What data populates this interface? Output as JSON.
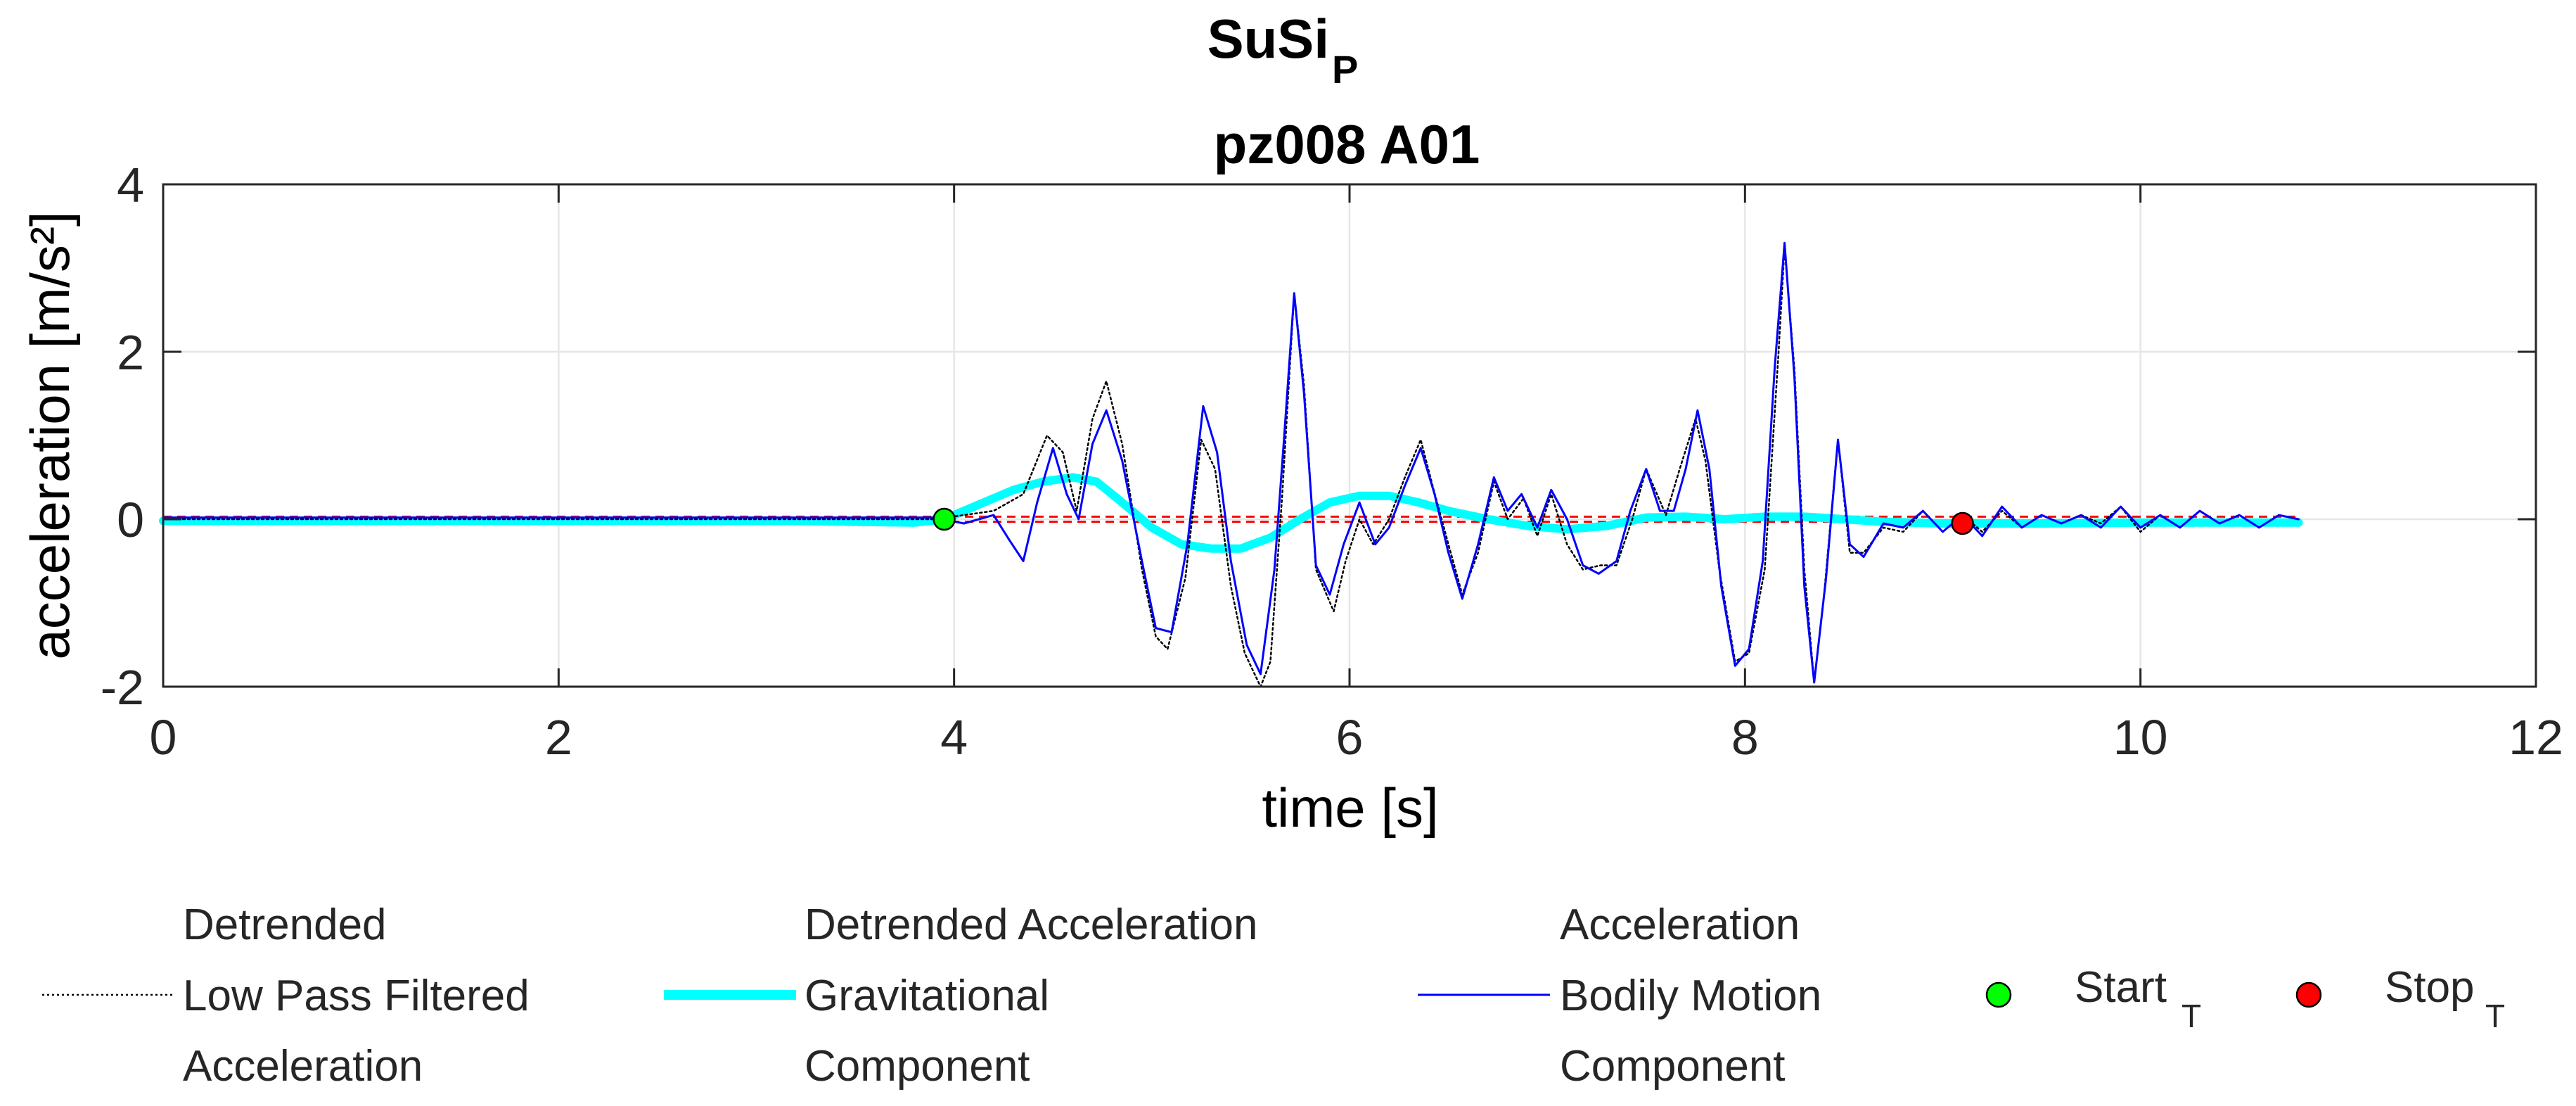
{
  "chart_data": {
    "type": "line",
    "title_main": "SuSi",
    "title_sub": "P",
    "subtitle": "pz008 A01",
    "xlabel": "time [s]",
    "ylabel": "acceleration [m/s²]",
    "xlim": [
      0,
      12
    ],
    "ylim": [
      -2,
      4
    ],
    "xticks": [
      0,
      2,
      4,
      6,
      8,
      10,
      12
    ],
    "yticks": [
      -2,
      0,
      2,
      4
    ],
    "grid": true,
    "legend_position": "bottom",
    "series": [
      {
        "name": "Detrended Low Pass Filtered Acceleration",
        "legend_lines": [
          "Detrended",
          "Low Pass Filtered",
          "Acceleration"
        ],
        "color": "#000000",
        "style": "dotted",
        "points": [
          [
            0,
            0.0
          ],
          [
            3.9,
            0.0
          ],
          [
            4.05,
            0.05
          ],
          [
            4.2,
            0.1
          ],
          [
            4.35,
            0.3
          ],
          [
            4.47,
            1.0
          ],
          [
            4.55,
            0.8
          ],
          [
            4.62,
            0.1
          ],
          [
            4.7,
            1.2
          ],
          [
            4.77,
            1.65
          ],
          [
            4.85,
            0.9
          ],
          [
            4.95,
            -0.6
          ],
          [
            5.02,
            -1.4
          ],
          [
            5.08,
            -1.55
          ],
          [
            5.17,
            -0.7
          ],
          [
            5.25,
            0.95
          ],
          [
            5.32,
            0.6
          ],
          [
            5.4,
            -0.8
          ],
          [
            5.47,
            -1.6
          ],
          [
            5.55,
            -2.0
          ],
          [
            5.6,
            -1.7
          ],
          [
            5.66,
            0.3
          ],
          [
            5.72,
            2.7
          ],
          [
            5.77,
            1.6
          ],
          [
            5.83,
            -0.6
          ],
          [
            5.92,
            -1.1
          ],
          [
            5.98,
            -0.5
          ],
          [
            6.05,
            0.0
          ],
          [
            6.12,
            -0.3
          ],
          [
            6.2,
            0.0
          ],
          [
            6.28,
            0.5
          ],
          [
            6.36,
            0.95
          ],
          [
            6.42,
            0.4
          ],
          [
            6.5,
            -0.3
          ],
          [
            6.57,
            -0.9
          ],
          [
            6.65,
            -0.4
          ],
          [
            6.73,
            0.45
          ],
          [
            6.8,
            0.0
          ],
          [
            6.88,
            0.25
          ],
          [
            6.95,
            -0.2
          ],
          [
            7.02,
            0.3
          ],
          [
            7.1,
            -0.3
          ],
          [
            7.18,
            -0.6
          ],
          [
            7.27,
            -0.55
          ],
          [
            7.35,
            -0.55
          ],
          [
            7.43,
            0.0
          ],
          [
            7.5,
            0.6
          ],
          [
            7.6,
            0.05
          ],
          [
            7.67,
            0.6
          ],
          [
            7.75,
            1.2
          ],
          [
            7.8,
            0.7
          ],
          [
            7.87,
            -0.6
          ],
          [
            7.95,
            -1.7
          ],
          [
            8.02,
            -1.6
          ],
          [
            8.1,
            -0.6
          ],
          [
            8.17,
            2.0
          ],
          [
            8.2,
            3.25
          ],
          [
            8.25,
            1.8
          ],
          [
            8.3,
            -0.6
          ],
          [
            8.35,
            -1.95
          ],
          [
            8.4,
            -0.9
          ],
          [
            8.47,
            0.95
          ],
          [
            8.53,
            -0.4
          ],
          [
            8.6,
            -0.4
          ],
          [
            8.7,
            -0.1
          ],
          [
            8.8,
            -0.15
          ],
          [
            8.9,
            0.1
          ],
          [
            9.0,
            -0.15
          ],
          [
            9.1,
            0.05
          ],
          [
            9.2,
            -0.15
          ],
          [
            9.3,
            0.1
          ],
          [
            9.4,
            -0.1
          ],
          [
            9.5,
            0.05
          ],
          [
            9.6,
            -0.05
          ],
          [
            9.7,
            0.05
          ],
          [
            9.8,
            -0.05
          ],
          [
            9.9,
            0.15
          ],
          [
            10.0,
            -0.15
          ],
          [
            10.1,
            0.05
          ],
          [
            10.2,
            -0.1
          ],
          [
            10.3,
            0.1
          ],
          [
            10.4,
            -0.05
          ],
          [
            10.5,
            0.05
          ],
          [
            10.6,
            -0.1
          ],
          [
            10.7,
            0.05
          ],
          [
            10.8,
            0.0
          ]
        ]
      },
      {
        "name": "Detrended Acceleration Gravitational Component",
        "legend_lines": [
          "Detrended Acceleration",
          "Gravitational",
          "Component"
        ],
        "color": "#00ffff",
        "style": "thick",
        "points": [
          [
            0,
            -0.02
          ],
          [
            3.2,
            -0.02
          ],
          [
            3.5,
            -0.03
          ],
          [
            3.8,
            -0.04
          ],
          [
            3.95,
            0.0
          ],
          [
            4.1,
            0.15
          ],
          [
            4.3,
            0.35
          ],
          [
            4.45,
            0.45
          ],
          [
            4.6,
            0.5
          ],
          [
            4.72,
            0.45
          ],
          [
            4.85,
            0.2
          ],
          [
            5.0,
            -0.1
          ],
          [
            5.15,
            -0.3
          ],
          [
            5.3,
            -0.35
          ],
          [
            5.45,
            -0.35
          ],
          [
            5.6,
            -0.22
          ],
          [
            5.75,
            0.0
          ],
          [
            5.9,
            0.2
          ],
          [
            6.05,
            0.28
          ],
          [
            6.2,
            0.28
          ],
          [
            6.35,
            0.2
          ],
          [
            6.5,
            0.1
          ],
          [
            6.7,
            0.0
          ],
          [
            6.9,
            -0.08
          ],
          [
            7.1,
            -0.12
          ],
          [
            7.3,
            -0.08
          ],
          [
            7.5,
            0.02
          ],
          [
            7.7,
            0.03
          ],
          [
            7.9,
            0.0
          ],
          [
            8.1,
            0.03
          ],
          [
            8.3,
            0.03
          ],
          [
            8.5,
            0.0
          ],
          [
            8.7,
            -0.03
          ],
          [
            9.0,
            -0.05
          ],
          [
            9.5,
            -0.05
          ],
          [
            10.0,
            -0.04
          ],
          [
            10.8,
            -0.04
          ]
        ]
      },
      {
        "name": "Acceleration Bodily Motion Component",
        "legend_lines": [
          "Acceleration",
          "Bodily Motion",
          "Component"
        ],
        "color": "#0000ff",
        "style": "thin",
        "points": [
          [
            0,
            0.02
          ],
          [
            3.9,
            0.02
          ],
          [
            4.05,
            -0.05
          ],
          [
            4.2,
            0.05
          ],
          [
            4.28,
            -0.25
          ],
          [
            4.35,
            -0.5
          ],
          [
            4.42,
            0.2
          ],
          [
            4.5,
            0.85
          ],
          [
            4.57,
            0.3
          ],
          [
            4.63,
            0.0
          ],
          [
            4.7,
            0.9
          ],
          [
            4.77,
            1.3
          ],
          [
            4.85,
            0.7
          ],
          [
            4.95,
            -0.5
          ],
          [
            5.02,
            -1.3
          ],
          [
            5.1,
            -1.35
          ],
          [
            5.18,
            -0.3
          ],
          [
            5.26,
            1.35
          ],
          [
            5.33,
            0.8
          ],
          [
            5.4,
            -0.5
          ],
          [
            5.48,
            -1.5
          ],
          [
            5.55,
            -1.85
          ],
          [
            5.62,
            -0.6
          ],
          [
            5.67,
            1.0
          ],
          [
            5.72,
            2.7
          ],
          [
            5.77,
            1.5
          ],
          [
            5.83,
            -0.55
          ],
          [
            5.9,
            -0.9
          ],
          [
            5.97,
            -0.3
          ],
          [
            6.05,
            0.2
          ],
          [
            6.13,
            -0.3
          ],
          [
            6.2,
            -0.1
          ],
          [
            6.28,
            0.4
          ],
          [
            6.36,
            0.85
          ],
          [
            6.43,
            0.3
          ],
          [
            6.5,
            -0.4
          ],
          [
            6.57,
            -0.95
          ],
          [
            6.65,
            -0.3
          ],
          [
            6.73,
            0.5
          ],
          [
            6.8,
            0.1
          ],
          [
            6.87,
            0.3
          ],
          [
            6.95,
            -0.1
          ],
          [
            7.02,
            0.35
          ],
          [
            7.1,
            0.0
          ],
          [
            7.18,
            -0.55
          ],
          [
            7.26,
            -0.65
          ],
          [
            7.35,
            -0.5
          ],
          [
            7.42,
            0.1
          ],
          [
            7.5,
            0.6
          ],
          [
            7.57,
            0.1
          ],
          [
            7.64,
            0.1
          ],
          [
            7.7,
            0.6
          ],
          [
            7.76,
            1.3
          ],
          [
            7.82,
            0.6
          ],
          [
            7.88,
            -0.8
          ],
          [
            7.95,
            -1.75
          ],
          [
            8.02,
            -1.55
          ],
          [
            8.09,
            -0.5
          ],
          [
            8.15,
            1.8
          ],
          [
            8.2,
            3.3
          ],
          [
            8.25,
            1.7
          ],
          [
            8.3,
            -0.8
          ],
          [
            8.35,
            -1.95
          ],
          [
            8.41,
            -0.7
          ],
          [
            8.47,
            0.95
          ],
          [
            8.53,
            -0.3
          ],
          [
            8.6,
            -0.45
          ],
          [
            8.7,
            -0.05
          ],
          [
            8.8,
            -0.1
          ],
          [
            8.9,
            0.1
          ],
          [
            9.0,
            -0.15
          ],
          [
            9.1,
            0.05
          ],
          [
            9.2,
            -0.2
          ],
          [
            9.3,
            0.15
          ],
          [
            9.4,
            -0.1
          ],
          [
            9.5,
            0.05
          ],
          [
            9.6,
            -0.05
          ],
          [
            9.7,
            0.05
          ],
          [
            9.8,
            -0.1
          ],
          [
            9.9,
            0.15
          ],
          [
            10.0,
            -0.1
          ],
          [
            10.1,
            0.05
          ],
          [
            10.2,
            -0.1
          ],
          [
            10.3,
            0.1
          ],
          [
            10.4,
            -0.05
          ],
          [
            10.5,
            0.05
          ],
          [
            10.6,
            -0.1
          ],
          [
            10.7,
            0.05
          ],
          [
            10.8,
            0.0
          ]
        ]
      }
    ],
    "reference_lines": [
      {
        "name": "threshold-upper",
        "y": 0.03,
        "x_range": [
          0,
          10.8
        ],
        "color": "#ff0000",
        "style": "dashed"
      },
      {
        "name": "threshold-lower",
        "y": -0.03,
        "x_range": [
          0,
          10.8
        ],
        "color": "#ff0000",
        "style": "dashed"
      }
    ],
    "markers": [
      {
        "name": "Start",
        "sub": "T",
        "x": 3.95,
        "y": 0.0,
        "color": "#00ff00"
      },
      {
        "name": "Stop",
        "sub": "T",
        "x": 9.1,
        "y": -0.05,
        "color": "#ff0000"
      }
    ]
  }
}
